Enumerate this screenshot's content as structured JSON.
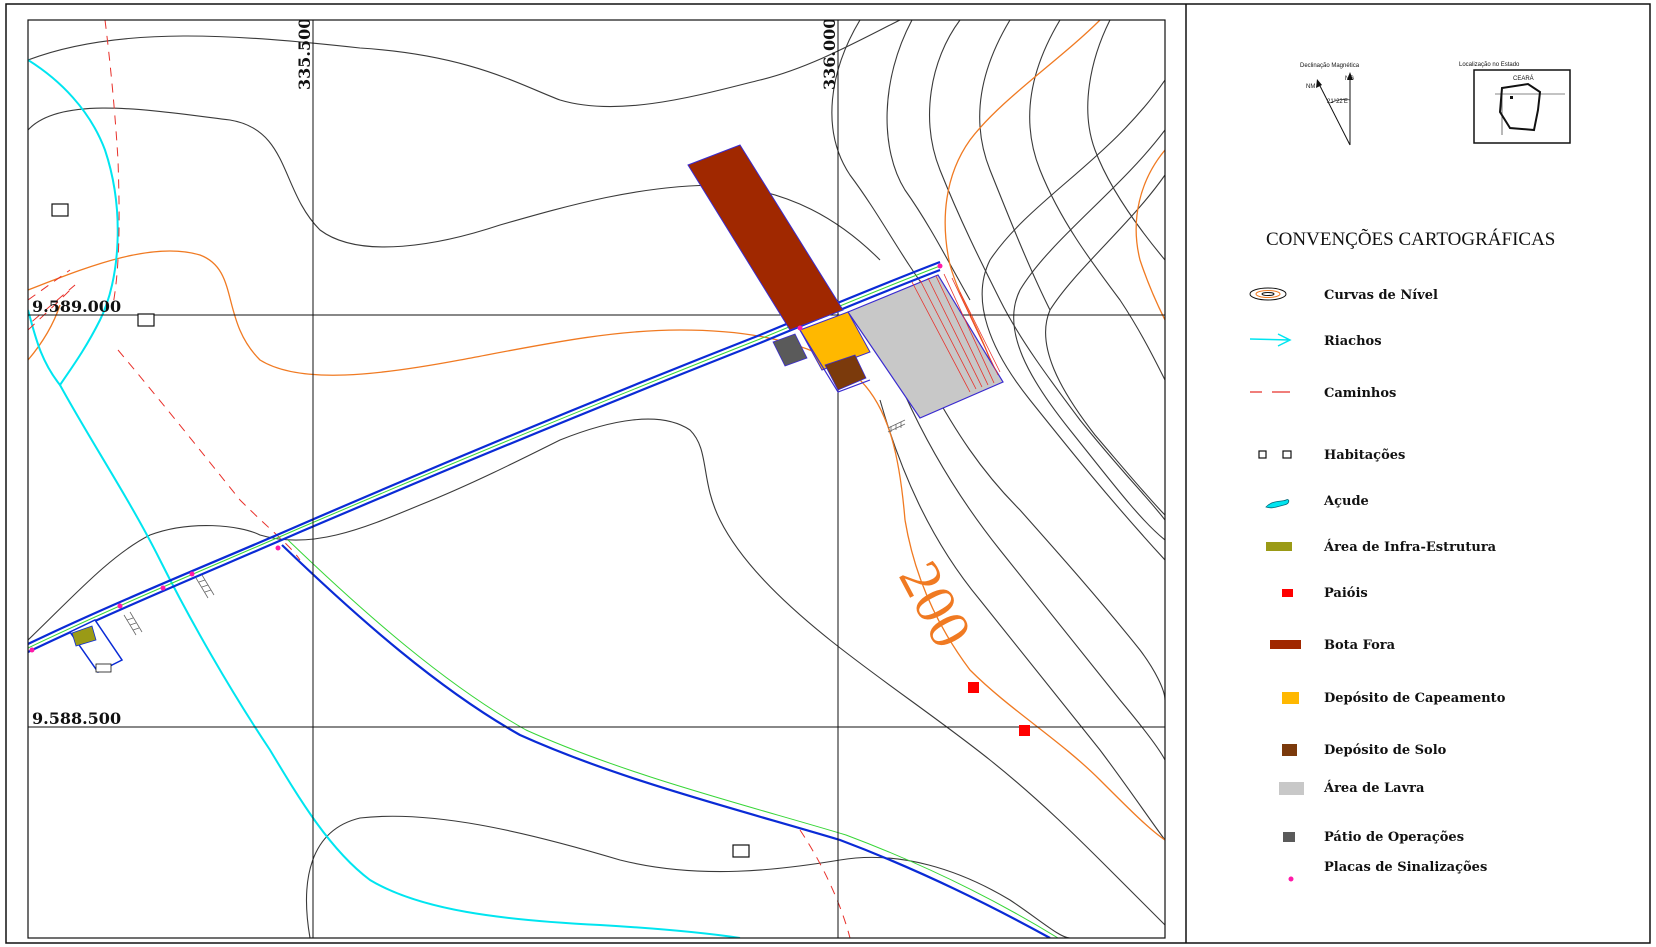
{
  "map": {
    "grid_labels": {
      "east_1": "335.500",
      "east_2": "336.000",
      "north_1": "9.589.000",
      "north_2": "9.588.500"
    },
    "contour_label": "200",
    "colors": {
      "contour_gray": "#3a3a3a",
      "contour_orange": "#f07a22",
      "stream": "#00e5f0",
      "path": "#e8302a",
      "road": "#0a2bd6",
      "road_center": "#37d637",
      "bota_fora": "#a02800",
      "capeamento": "#ffb800",
      "solo": "#7b3a0c",
      "lavra": "#c8c8c8",
      "patio": "#5a5a5a",
      "paiol": "#ff0000",
      "infra": "#9a9a16",
      "sinal": "#ff1aa8"
    }
  },
  "inset": {
    "declination": {
      "title": "Declinação Magnética",
      "ng": "NG",
      "nm": "NM",
      "angle": "21°22'E"
    },
    "location": {
      "title": "Localização no Estado",
      "state": "CEARÁ"
    }
  },
  "legend": {
    "title": "CONVENÇÕES CARTOGRÁFICAS",
    "items": [
      {
        "label": "Curvas de Nível",
        "symbol": "contour-icon"
      },
      {
        "label": "Riachos",
        "symbol": "stream-icon"
      },
      {
        "label": "Caminhos",
        "symbol": "path-icon"
      },
      {
        "label": "Habitações",
        "symbol": "house-icon"
      },
      {
        "label": "Açude",
        "symbol": "dam-icon"
      },
      {
        "label": "Área de Infra-Estrutura",
        "symbol": "infra-swatch"
      },
      {
        "label": "Paióis",
        "symbol": "paiol-swatch"
      },
      {
        "label": "Bota Fora",
        "symbol": "bota-fora-swatch"
      },
      {
        "label": "Depósito de Capeamento",
        "symbol": "capeamento-swatch"
      },
      {
        "label": "Depósito de Solo",
        "symbol": "solo-swatch"
      },
      {
        "label": "Área de Lavra",
        "symbol": "lavra-swatch"
      },
      {
        "label": "Pátio de Operações",
        "symbol": "patio-swatch"
      },
      {
        "label": "Placas de Sinalizações",
        "symbol": "sign-dot"
      }
    ]
  }
}
